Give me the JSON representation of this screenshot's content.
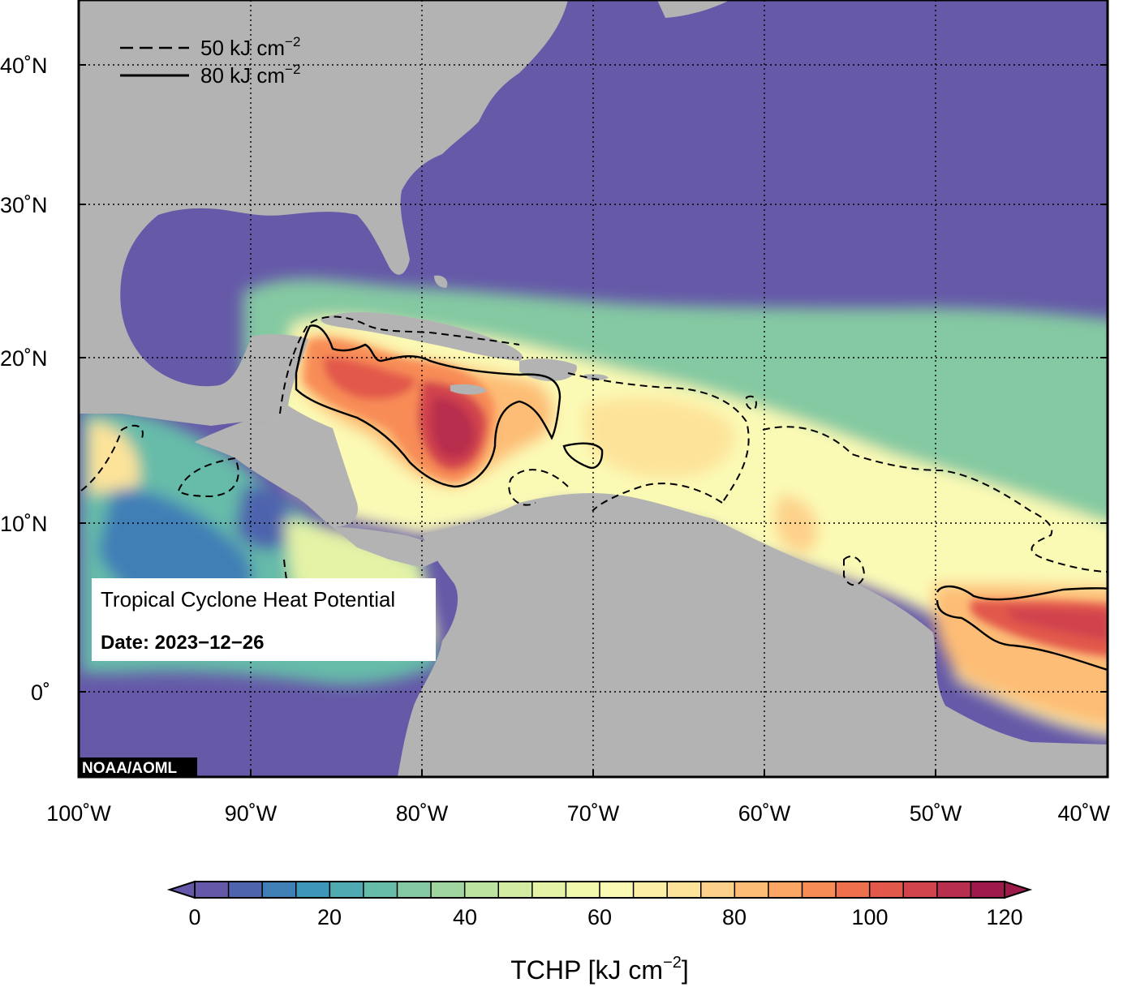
{
  "map": {
    "lon_labels": [
      "100˚W",
      "90˚W",
      "80˚W",
      "70˚W",
      "60˚W",
      "50˚W",
      "40˚W"
    ],
    "lat_labels": [
      "40˚N",
      "30˚N",
      "20˚N",
      "10˚N",
      "0˚"
    ],
    "legend": {
      "dashed_label": "50 kJ cm",
      "dashed_sup": "−2",
      "solid_label": "80 kJ cm",
      "solid_sup": "−2"
    },
    "info_box": {
      "title": "Tropical Cyclone Heat Potential",
      "date": "Date: 2023−12−26"
    },
    "credit": "NOAA/AOML",
    "colors": {
      "ocean_cold": "#6559a8",
      "land": "#b3b3b3",
      "grid": "#000000"
    }
  },
  "colorbar": {
    "tick_labels": [
      "0",
      "20",
      "40",
      "60",
      "80",
      "100",
      "120"
    ],
    "title": "TCHP [kJ cm",
    "title_sup": "−2",
    "title_end": "]",
    "colors": [
      "#6558a8",
      "#4e64ad",
      "#3f7fb6",
      "#3c97b8",
      "#4faab2",
      "#66bba9",
      "#84c9a2",
      "#a1d59f",
      "#bce3a0",
      "#d2eca1",
      "#e4f3a6",
      "#f2f9ad",
      "#fbfab5",
      "#fdf0a6",
      "#fde39a",
      "#fdd18a",
      "#fdbd76",
      "#fca665",
      "#f88c56",
      "#ef704c",
      "#e2594b",
      "#d1434d",
      "#b82f4e",
      "#9e1a4a"
    ]
  }
}
